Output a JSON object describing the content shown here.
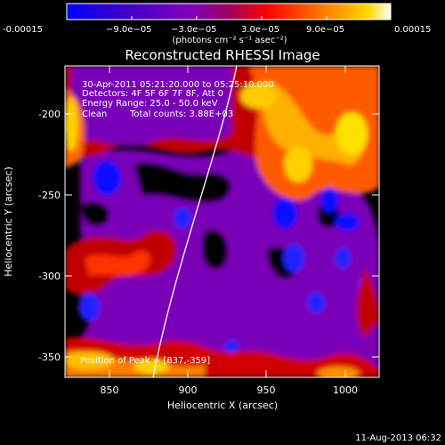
{
  "colorbar": {
    "tick_labels": [
      "-0.00015",
      "−9.0e−05",
      "−3.0e−05",
      "3.0e−05",
      "9.0e−05",
      "0.00015"
    ],
    "unit_label": "(photons cm⁻² s⁻¹ asec⁻²)",
    "colors": [
      "#0000ff",
      "#4000c8",
      "#8000c0",
      "#b00040",
      "#ff0000",
      "#ff8000",
      "#ffd800",
      "#ffffff"
    ]
  },
  "title": "Reconstructed RHESSI Image",
  "annotations": {
    "time_range": "30-Apr-2011 05:21:20.000 to 05:25:10.000",
    "detectors": "Detectors: 4F 5F 6F 7F 8F, Att 0",
    "energy_range": "Energy Range: 25.0 - 50.0 keV",
    "clean": "Clean",
    "total_counts": "Total counts: 3.88E+03",
    "peak_position": "Position of Peak = [837,-359]"
  },
  "axes": {
    "xlabel": "Heliocentric X (arcsec)",
    "ylabel": "Heliocentric Y (arcsec)",
    "x_ticks": [
      "850",
      "900",
      "950",
      "1000"
    ],
    "y_ticks": [
      "-200",
      "-250",
      "-300",
      "-350"
    ],
    "xlim": [
      826,
      1018
    ],
    "ylim": [
      -364,
      -172
    ]
  },
  "footer": {
    "date": "11-Aug-2013 06:32"
  }
}
